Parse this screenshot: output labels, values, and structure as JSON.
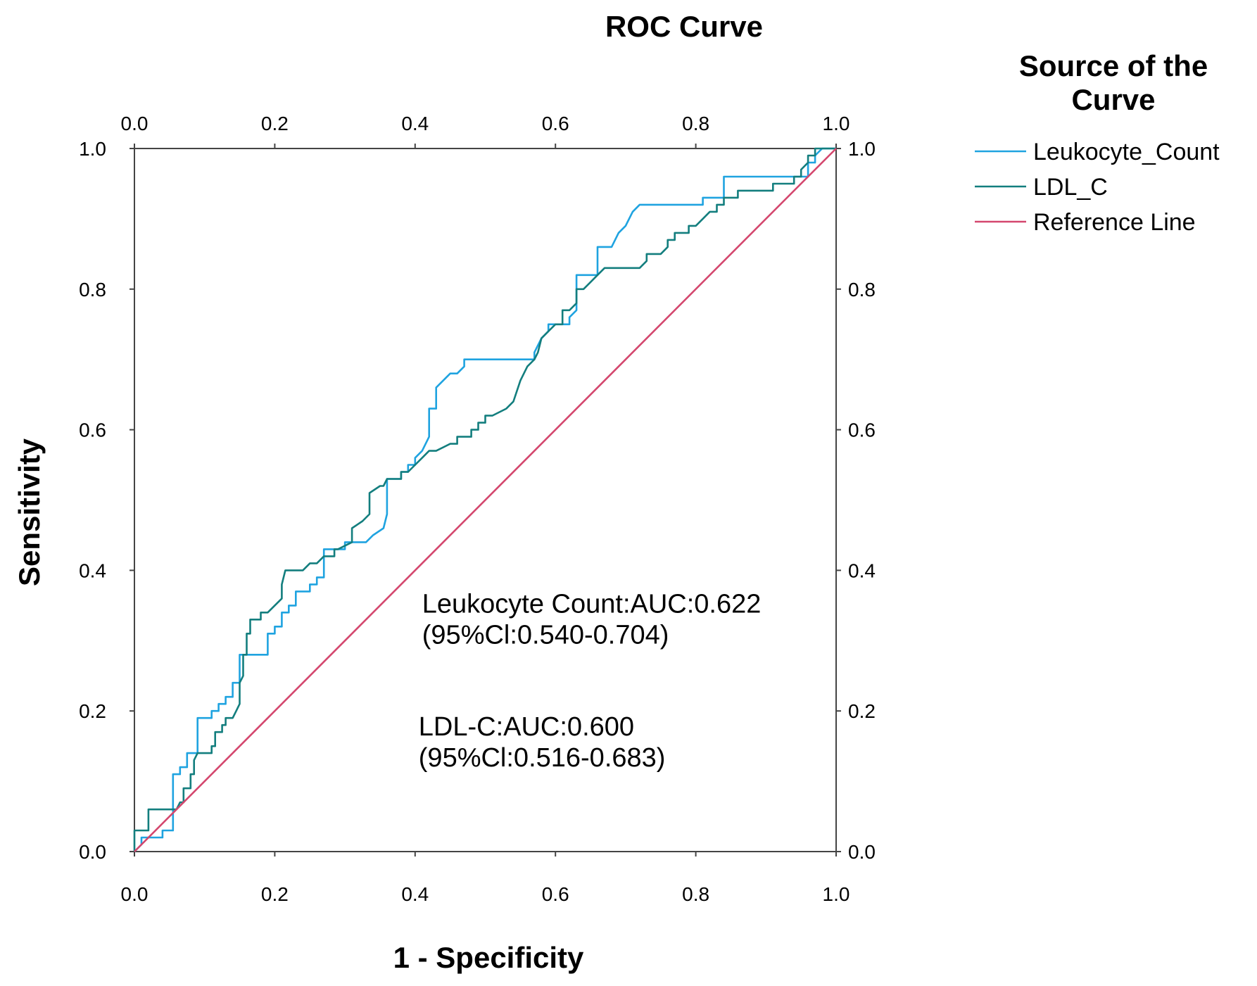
{
  "chart_data": {
    "type": "line",
    "title": "ROC Curve",
    "xlabel": "1 - Specificity",
    "ylabel": "Sensitivity",
    "xlim": [
      0,
      1
    ],
    "ylim": [
      0,
      1
    ],
    "x_ticks": [
      "0.0",
      "0.2",
      "0.4",
      "0.6",
      "0.8",
      "1.0"
    ],
    "y_ticks": [
      "0.0",
      "0.2",
      "0.4",
      "0.6",
      "0.8",
      "1.0"
    ],
    "grid": false,
    "legend": {
      "title": "Source of the Curve",
      "title_lines": [
        "Source of the",
        "Curve"
      ],
      "placement": "outside-right-top",
      "entries": [
        "Leukocyte_Count",
        "LDL_C",
        "Reference Line"
      ]
    },
    "series": [
      {
        "name": "Leukocyte_Count",
        "color": "#1fa3e0",
        "points": [
          [
            0,
            0
          ],
          [
            0.01,
            0.01
          ],
          [
            0.01,
            0.02
          ],
          [
            0.04,
            0.02
          ],
          [
            0.04,
            0.03
          ],
          [
            0.055,
            0.03
          ],
          [
            0.055,
            0.11
          ],
          [
            0.065,
            0.11
          ],
          [
            0.065,
            0.12
          ],
          [
            0.075,
            0.12
          ],
          [
            0.075,
            0.14
          ],
          [
            0.09,
            0.14
          ],
          [
            0.09,
            0.19
          ],
          [
            0.11,
            0.19
          ],
          [
            0.11,
            0.2
          ],
          [
            0.12,
            0.2
          ],
          [
            0.12,
            0.21
          ],
          [
            0.13,
            0.21
          ],
          [
            0.13,
            0.22
          ],
          [
            0.14,
            0.22
          ],
          [
            0.14,
            0.24
          ],
          [
            0.15,
            0.24
          ],
          [
            0.15,
            0.28
          ],
          [
            0.17,
            0.28
          ],
          [
            0.17,
            0.28
          ],
          [
            0.19,
            0.28
          ],
          [
            0.19,
            0.31
          ],
          [
            0.2,
            0.31
          ],
          [
            0.2,
            0.32
          ],
          [
            0.21,
            0.32
          ],
          [
            0.21,
            0.34
          ],
          [
            0.22,
            0.34
          ],
          [
            0.22,
            0.35
          ],
          [
            0.23,
            0.35
          ],
          [
            0.23,
            0.37
          ],
          [
            0.25,
            0.37
          ],
          [
            0.25,
            0.38
          ],
          [
            0.26,
            0.38
          ],
          [
            0.26,
            0.39
          ],
          [
            0.27,
            0.39
          ],
          [
            0.27,
            0.43
          ],
          [
            0.29,
            0.43
          ],
          [
            0.29,
            0.43
          ],
          [
            0.3,
            0.43
          ],
          [
            0.3,
            0.44
          ],
          [
            0.33,
            0.44
          ],
          [
            0.34,
            0.45
          ],
          [
            0.355,
            0.46
          ],
          [
            0.36,
            0.48
          ],
          [
            0.36,
            0.53
          ],
          [
            0.38,
            0.53
          ],
          [
            0.38,
            0.54
          ],
          [
            0.39,
            0.54
          ],
          [
            0.39,
            0.55
          ],
          [
            0.4,
            0.55
          ],
          [
            0.4,
            0.56
          ],
          [
            0.41,
            0.57
          ],
          [
            0.42,
            0.59
          ],
          [
            0.42,
            0.63
          ],
          [
            0.43,
            0.63
          ],
          [
            0.43,
            0.66
          ],
          [
            0.44,
            0.67
          ],
          [
            0.45,
            0.68
          ],
          [
            0.46,
            0.68
          ],
          [
            0.47,
            0.69
          ],
          [
            0.47,
            0.7
          ],
          [
            0.56,
            0.7
          ],
          [
            0.57,
            0.7
          ],
          [
            0.57,
            0.71
          ],
          [
            0.575,
            0.72
          ],
          [
            0.58,
            0.73
          ],
          [
            0.59,
            0.74
          ],
          [
            0.59,
            0.75
          ],
          [
            0.6,
            0.75
          ],
          [
            0.61,
            0.75
          ],
          [
            0.62,
            0.75
          ],
          [
            0.62,
            0.76
          ],
          [
            0.63,
            0.77
          ],
          [
            0.63,
            0.82
          ],
          [
            0.66,
            0.82
          ],
          [
            0.66,
            0.86
          ],
          [
            0.68,
            0.86
          ],
          [
            0.69,
            0.88
          ],
          [
            0.7,
            0.89
          ],
          [
            0.71,
            0.91
          ],
          [
            0.72,
            0.92
          ],
          [
            0.81,
            0.92
          ],
          [
            0.81,
            0.93
          ],
          [
            0.84,
            0.93
          ],
          [
            0.84,
            0.96
          ],
          [
            0.96,
            0.96
          ],
          [
            0.96,
            0.98
          ],
          [
            0.97,
            0.98
          ],
          [
            0.97,
            0.99
          ],
          [
            0.98,
            1.0
          ],
          [
            1.0,
            1.0
          ]
        ]
      },
      {
        "name": "LDL_C",
        "color": "#137e7e",
        "points": [
          [
            0,
            0
          ],
          [
            0,
            0.03
          ],
          [
            0.02,
            0.03
          ],
          [
            0.02,
            0.06
          ],
          [
            0.06,
            0.06
          ],
          [
            0.065,
            0.07
          ],
          [
            0.07,
            0.07
          ],
          [
            0.07,
            0.09
          ],
          [
            0.08,
            0.09
          ],
          [
            0.08,
            0.11
          ],
          [
            0.085,
            0.11
          ],
          [
            0.085,
            0.13
          ],
          [
            0.09,
            0.14
          ],
          [
            0.11,
            0.14
          ],
          [
            0.11,
            0.15
          ],
          [
            0.115,
            0.15
          ],
          [
            0.115,
            0.17
          ],
          [
            0.125,
            0.17
          ],
          [
            0.125,
            0.18
          ],
          [
            0.13,
            0.18
          ],
          [
            0.13,
            0.19
          ],
          [
            0.14,
            0.19
          ],
          [
            0.145,
            0.2
          ],
          [
            0.15,
            0.21
          ],
          [
            0.15,
            0.24
          ],
          [
            0.155,
            0.25
          ],
          [
            0.155,
            0.28
          ],
          [
            0.16,
            0.28
          ],
          [
            0.16,
            0.31
          ],
          [
            0.165,
            0.31
          ],
          [
            0.165,
            0.33
          ],
          [
            0.18,
            0.33
          ],
          [
            0.18,
            0.34
          ],
          [
            0.19,
            0.34
          ],
          [
            0.21,
            0.36
          ],
          [
            0.21,
            0.38
          ],
          [
            0.215,
            0.4
          ],
          [
            0.24,
            0.4
          ],
          [
            0.25,
            0.41
          ],
          [
            0.26,
            0.41
          ],
          [
            0.27,
            0.42
          ],
          [
            0.285,
            0.42
          ],
          [
            0.285,
            0.43
          ],
          [
            0.29,
            0.43
          ],
          [
            0.31,
            0.44
          ],
          [
            0.31,
            0.46
          ],
          [
            0.325,
            0.47
          ],
          [
            0.335,
            0.48
          ],
          [
            0.335,
            0.51
          ],
          [
            0.35,
            0.52
          ],
          [
            0.355,
            0.52
          ],
          [
            0.36,
            0.53
          ],
          [
            0.38,
            0.53
          ],
          [
            0.38,
            0.54
          ],
          [
            0.39,
            0.54
          ],
          [
            0.4,
            0.55
          ],
          [
            0.41,
            0.56
          ],
          [
            0.42,
            0.57
          ],
          [
            0.43,
            0.57
          ],
          [
            0.45,
            0.58
          ],
          [
            0.46,
            0.58
          ],
          [
            0.46,
            0.59
          ],
          [
            0.47,
            0.59
          ],
          [
            0.48,
            0.59
          ],
          [
            0.48,
            0.6
          ],
          [
            0.49,
            0.6
          ],
          [
            0.49,
            0.61
          ],
          [
            0.5,
            0.61
          ],
          [
            0.5,
            0.62
          ],
          [
            0.51,
            0.62
          ],
          [
            0.53,
            0.63
          ],
          [
            0.54,
            0.64
          ],
          [
            0.55,
            0.67
          ],
          [
            0.56,
            0.69
          ],
          [
            0.57,
            0.7
          ],
          [
            0.575,
            0.71
          ],
          [
            0.58,
            0.73
          ],
          [
            0.59,
            0.74
          ],
          [
            0.6,
            0.75
          ],
          [
            0.61,
            0.75
          ],
          [
            0.61,
            0.77
          ],
          [
            0.62,
            0.77
          ],
          [
            0.63,
            0.78
          ],
          [
            0.63,
            0.8
          ],
          [
            0.64,
            0.8
          ],
          [
            0.65,
            0.81
          ],
          [
            0.66,
            0.82
          ],
          [
            0.67,
            0.83
          ],
          [
            0.72,
            0.83
          ],
          [
            0.73,
            0.84
          ],
          [
            0.73,
            0.85
          ],
          [
            0.75,
            0.85
          ],
          [
            0.76,
            0.86
          ],
          [
            0.76,
            0.87
          ],
          [
            0.77,
            0.87
          ],
          [
            0.77,
            0.88
          ],
          [
            0.79,
            0.88
          ],
          [
            0.79,
            0.89
          ],
          [
            0.8,
            0.89
          ],
          [
            0.81,
            0.9
          ],
          [
            0.82,
            0.91
          ],
          [
            0.83,
            0.91
          ],
          [
            0.83,
            0.92
          ],
          [
            0.84,
            0.92
          ],
          [
            0.84,
            0.93
          ],
          [
            0.86,
            0.93
          ],
          [
            0.86,
            0.94
          ],
          [
            0.91,
            0.94
          ],
          [
            0.91,
            0.95
          ],
          [
            0.94,
            0.95
          ],
          [
            0.94,
            0.96
          ],
          [
            0.95,
            0.96
          ],
          [
            0.95,
            0.97
          ],
          [
            0.96,
            0.98
          ],
          [
            0.96,
            0.99
          ],
          [
            0.97,
            0.99
          ],
          [
            0.97,
            1.0
          ],
          [
            1.0,
            1.0
          ]
        ]
      },
      {
        "name": "Reference Line",
        "color": "#d4476e",
        "points": [
          [
            0,
            0
          ],
          [
            1,
            1
          ]
        ]
      }
    ],
    "annotations": [
      {
        "name": "leukocyte-auc",
        "lines": [
          "Leukocyte Count:AUC:0.622",
          "(95%Cl:0.540-0.704)"
        ],
        "x": 0.41,
        "y": 0.34
      },
      {
        "name": "ldl-auc",
        "lines": [
          "LDL-C:AUC:0.600",
          "(95%Cl:0.516-0.683)"
        ],
        "x": 0.405,
        "y": 0.165
      }
    ]
  }
}
